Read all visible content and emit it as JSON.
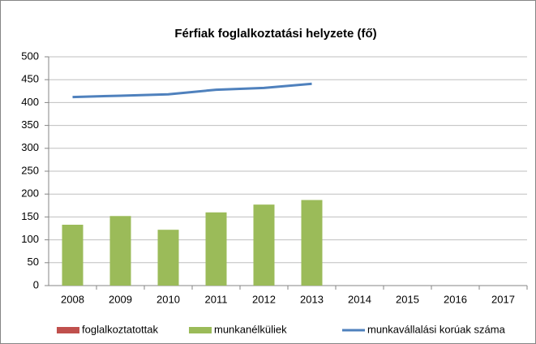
{
  "chart_data": {
    "type": "bar",
    "title": "Férfiak foglalkoztatási helyzete (fő)",
    "categories": [
      "2008",
      "2009",
      "2010",
      "2011",
      "2012",
      "2013",
      "2014",
      "2015",
      "2016",
      "2017"
    ],
    "series": [
      {
        "name": "foglalkoztatottak",
        "type": "bar",
        "color": "#c0504d",
        "values": [
          null,
          null,
          null,
          null,
          null,
          null,
          null,
          null,
          null,
          null
        ]
      },
      {
        "name": "munkanélküliek",
        "type": "bar",
        "color": "#9bbb59",
        "values": [
          133,
          152,
          122,
          160,
          177,
          187,
          null,
          null,
          null,
          null
        ]
      },
      {
        "name": "munkavállalási korúak száma",
        "type": "line",
        "color": "#4f81bd",
        "values": [
          412,
          415,
          418,
          428,
          432,
          441,
          null,
          null,
          null,
          null
        ]
      }
    ],
    "ylim": [
      0,
      500
    ],
    "yticks": [
      0,
      50,
      100,
      150,
      200,
      250,
      300,
      350,
      400,
      450,
      500
    ],
    "grid": true,
    "legend": "bottom"
  }
}
